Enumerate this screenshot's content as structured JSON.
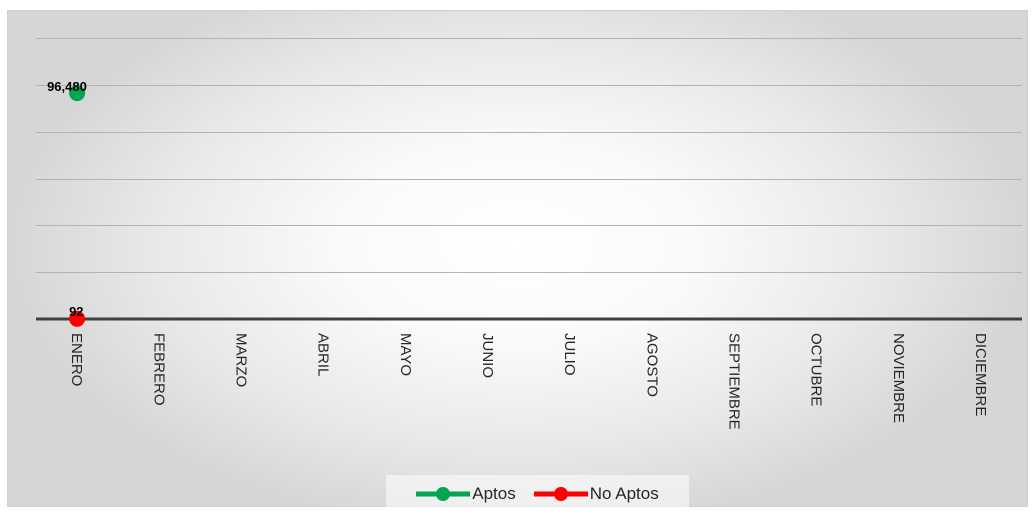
{
  "chart_data": {
    "type": "line",
    "categories": [
      "ENERO",
      "FEBRERO",
      "MARZO",
      "ABRIL",
      "MAYO",
      "JUNIO",
      "JULIO",
      "AGOSTO",
      "SEPTIEMBRE",
      "OCTUBRE",
      "NOVIEMBRE",
      "DICIEMBRE"
    ],
    "series": [
      {
        "name": "Aptos",
        "color": "#00a650",
        "values": [
          96480,
          null,
          null,
          null,
          null,
          null,
          null,
          null,
          null,
          null,
          null,
          null
        ],
        "data_labels": [
          "96,480"
        ]
      },
      {
        "name": "No Aptos",
        "color": "#ff0000",
        "values": [
          92,
          null,
          null,
          null,
          null,
          null,
          null,
          null,
          null,
          null,
          null,
          null
        ],
        "data_labels": [
          "92"
        ]
      }
    ],
    "ylim": [
      0,
      120000
    ],
    "y_gridline_step": 20000,
    "y_tick_labels_visible": false,
    "grid": true,
    "legend_position": "bottom",
    "title": "",
    "xlabel": "",
    "ylabel": ""
  }
}
